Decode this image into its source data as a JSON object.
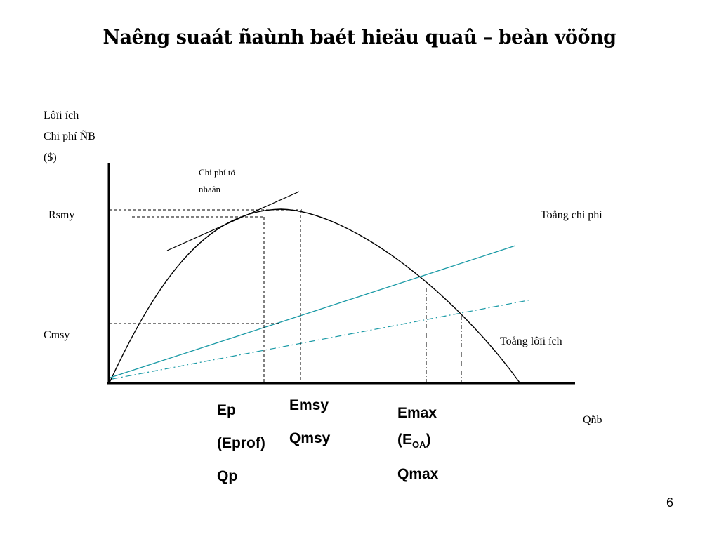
{
  "title": "Naêng suaát ñaùnh baét hieäu quaû – beàn vöõng",
  "y_axis": {
    "line1": "Lôïi ích",
    "line2": "Chi phí ÑB",
    "line3": "($)"
  },
  "x_axis_label": "Qñb",
  "level_labels": {
    "rsmy": "Rsmy",
    "cmsy": "Cmsy"
  },
  "curve_labels": {
    "marginal_cost_line1": "Chi phí tö",
    "marginal_cost_line2": "nhaân",
    "total_cost": "Toång chi phí",
    "total_revenue": "Toång lôïi ích"
  },
  "points": {
    "p": {
      "e": "Ep",
      "e_alt": "(Eprof)",
      "q": "Qp"
    },
    "msy": {
      "e": "Emsy",
      "q": "Qmsy"
    },
    "max": {
      "e": "Emax",
      "e_alt_prefix": "(E",
      "e_alt_sub": "OA",
      "e_alt_suffix": ")",
      "q": "Qmax"
    }
  },
  "colors": {
    "axes": "#000000",
    "revenue_curve": "#000000",
    "total_cost_line": "#1a9aa6",
    "cost_dashdot_line": "#1a9aa6",
    "guide_lines": "#000000"
  },
  "page_number": "6"
}
